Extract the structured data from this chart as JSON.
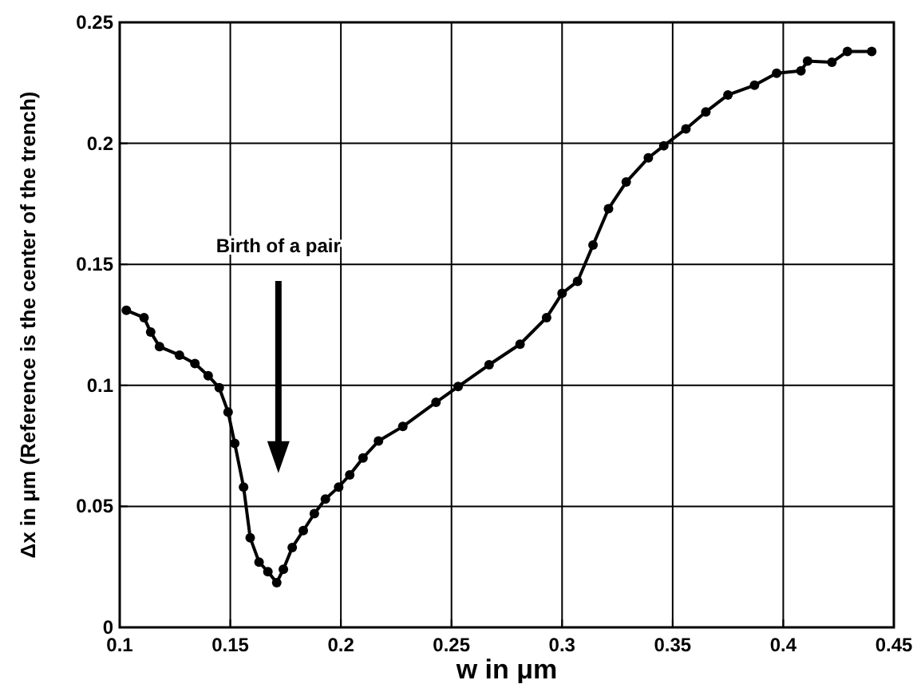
{
  "chart_data": {
    "type": "line",
    "xlabel": "w in μm",
    "ylabel": "Δx in μm (Reference is the center of the trench)",
    "xlim": [
      0.1,
      0.45
    ],
    "ylim": [
      0,
      0.25
    ],
    "xticks": [
      0.1,
      0.15,
      0.2,
      0.25,
      0.3,
      0.35,
      0.4,
      0.45
    ],
    "yticks": [
      0,
      0.05,
      0.1,
      0.15,
      0.2,
      0.25
    ],
    "grid": true,
    "marker": "circle",
    "line_style": "solid",
    "annotations": [
      "Birth of a pair"
    ],
    "series": [
      {
        "color": "#000000",
        "x": [
          0.103,
          0.111,
          0.114,
          0.118,
          0.127,
          0.134,
          0.14,
          0.145,
          0.149,
          0.152,
          0.156,
          0.159,
          0.163,
          0.167,
          0.171,
          0.174,
          0.178,
          0.183,
          0.188,
          0.193,
          0.199,
          0.204,
          0.21,
          0.217,
          0.228,
          0.243,
          0.253,
          0.267,
          0.281,
          0.293,
          0.3,
          0.307,
          0.314,
          0.321,
          0.329,
          0.339,
          0.346,
          0.356,
          0.365,
          0.375,
          0.387,
          0.397,
          0.408,
          0.411,
          0.422,
          0.429,
          0.44
        ],
        "values": [
          0.131,
          0.128,
          0.122,
          0.116,
          0.1125,
          0.109,
          0.104,
          0.099,
          0.089,
          0.076,
          0.058,
          0.037,
          0.027,
          0.023,
          0.0185,
          0.024,
          0.033,
          0.04,
          0.047,
          0.053,
          0.058,
          0.063,
          0.07,
          0.077,
          0.083,
          0.093,
          0.0995,
          0.1085,
          0.117,
          0.128,
          0.138,
          0.143,
          0.158,
          0.173,
          0.184,
          0.194,
          0.199,
          0.206,
          0.213,
          0.22,
          0.224,
          0.229,
          0.23,
          0.234,
          0.2335,
          0.238,
          0.238
        ]
      }
    ]
  }
}
